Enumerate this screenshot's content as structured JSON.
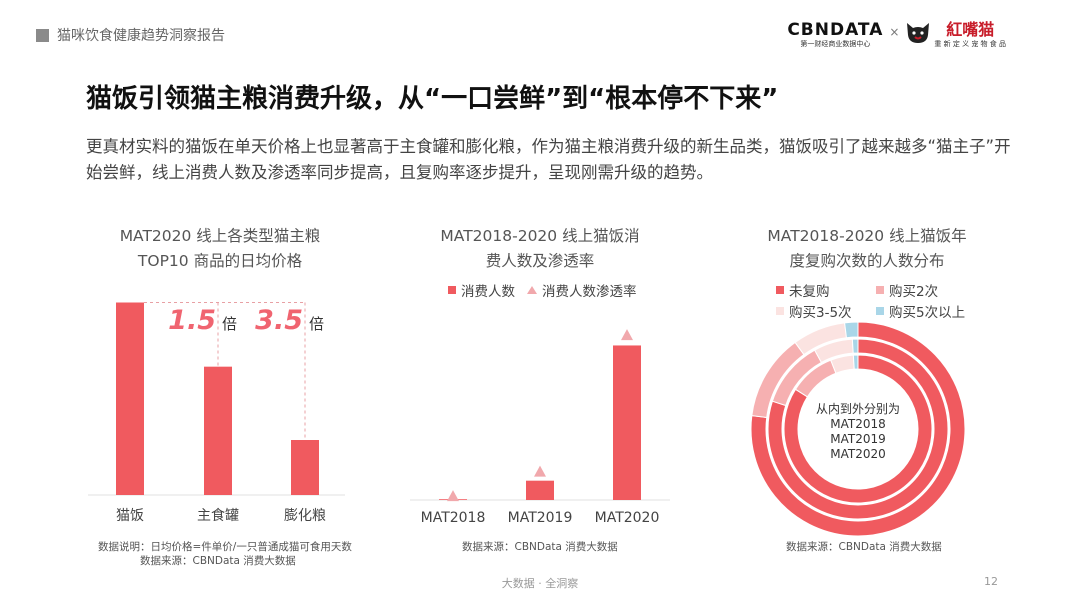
{
  "header": {
    "section": "猫咪饮食健康趋势洞察报告"
  },
  "logos": {
    "cbndata": "CBNDATA",
    "cbndata_sub": "第一财经商业数据中心",
    "times": "×",
    "brand": "紅嘴猫",
    "brand_sub": "重 新 定 义 宠 物 食 品"
  },
  "slide": {
    "title": "猫饭引领猫主粮消费升级，从“一口尝鲜”到“根本停不下来”",
    "description": "更真材实料的猫饭在单天价格上也显著高于主食罐和膨化粮，作为猫主粮消费升级的新生品类，猫饭吸引了越来越多“猫主子”开始尝鲜，线上消费人数及渗透率同步提高，且复购率逐步提升，呈现刚需升级的趋势。"
  },
  "footer": {
    "text": "大数据 · 全洞察",
    "page": "12"
  },
  "colors": {
    "primary": "#f05a5f",
    "light_red": "#f6b0b1",
    "pale_pink": "#fbe3e1",
    "light_blue": "#a9d6e8",
    "triangle": "#f1a8ac"
  },
  "chart_data": [
    {
      "type": "bar",
      "title_lines": [
        "MAT2020 线上各类型猫主粮",
        "TOP10 商品的日均价格"
      ],
      "categories": [
        "猫饭",
        "主食罐",
        "膨化粮"
      ],
      "values": [
        5.25,
        3.5,
        1.5
      ],
      "ylim": [
        0,
        6
      ],
      "annotations": [
        {
          "value": "1.5",
          "unit": "倍",
          "between": [
            "猫饭",
            "主食罐"
          ]
        },
        {
          "value": "3.5",
          "unit": "倍",
          "between": [
            "猫饭",
            "膨化粮"
          ]
        }
      ],
      "note_lines": [
        "数据说明：日均价格=件单价/一只普通成猫可食用天数",
        "数据来源：CBNData 消费大数据"
      ]
    },
    {
      "type": "bar",
      "title_lines": [
        "MAT2018-2020 线上猫饭消",
        "费人数及渗透率"
      ],
      "categories": [
        "MAT2018",
        "MAT2019",
        "MAT2020"
      ],
      "series": [
        {
          "name": "消费人数",
          "values": [
            0.3,
            7.5,
            60
          ]
        },
        {
          "name": "消费人数渗透率",
          "values": [
            1.5,
            11,
            64
          ]
        }
      ],
      "ylim": [
        0,
        66
      ],
      "note_lines": [
        "数据来源：CBNData 消费大数据"
      ]
    },
    {
      "type": "pie",
      "subtype": "nested-donut",
      "title_lines": [
        "MAT2018-2020 线上猫饭年",
        "度复购次数的人数分布"
      ],
      "legend": [
        "未复购",
        "购买2次",
        "购买3-5次",
        "购买5次以上"
      ],
      "rings": [
        {
          "name": "MAT2018",
          "values": [
            84,
            10,
            5,
            1
          ]
        },
        {
          "name": "MAT2019",
          "values": [
            80,
            12,
            7,
            1
          ]
        },
        {
          "name": "MAT2020",
          "values": [
            77,
            13,
            8,
            2
          ]
        }
      ],
      "center_lines": [
        "从内到外分别为",
        "MAT2018",
        "MAT2019",
        "MAT2020"
      ],
      "note_lines": [
        "数据来源：CBNData 消费大数据"
      ]
    }
  ]
}
